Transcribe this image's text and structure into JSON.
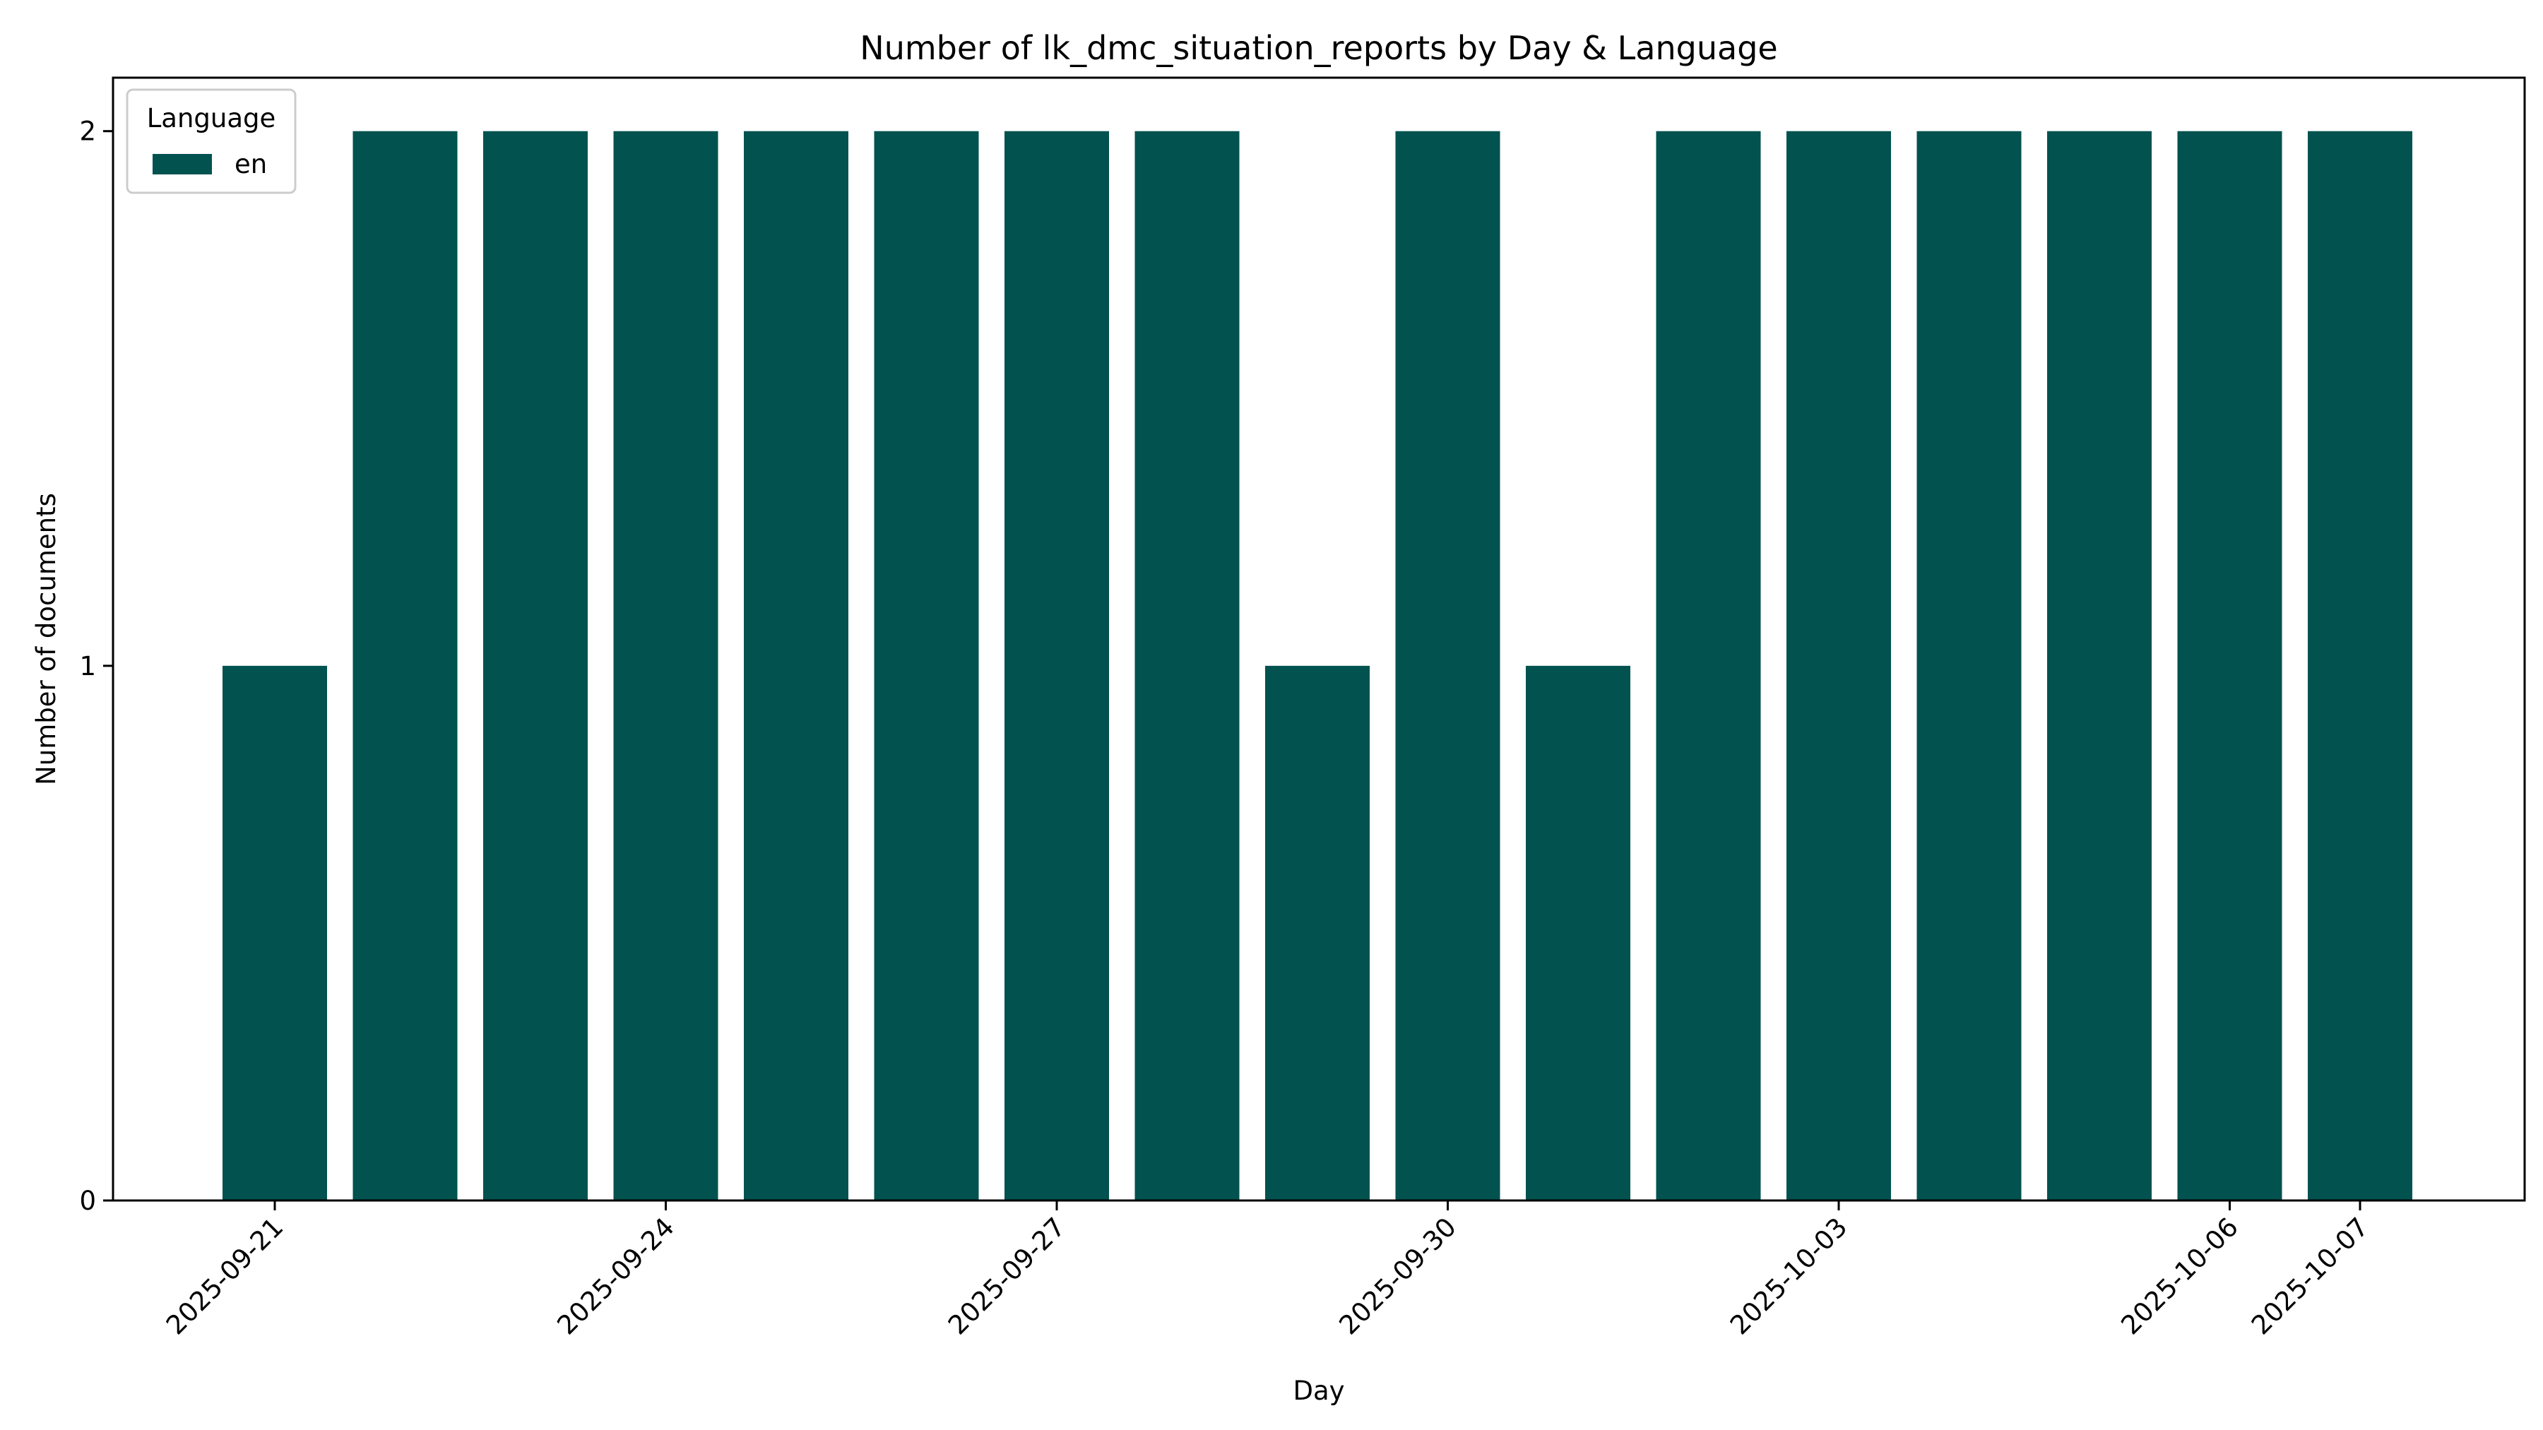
{
  "chart_data": {
    "type": "bar",
    "title": "Number of lk_dmc_situation_reports by Day & Language",
    "xlabel": "Day",
    "ylabel": "Number of documents",
    "categories": [
      "2025-09-21",
      "2025-09-22",
      "2025-09-23",
      "2025-09-24",
      "2025-09-25",
      "2025-09-26",
      "2025-09-27",
      "2025-09-28",
      "2025-09-29",
      "2025-09-30",
      "2025-10-01",
      "2025-10-02",
      "2025-10-03",
      "2025-10-04",
      "2025-10-05",
      "2025-10-06",
      "2025-10-07"
    ],
    "series": [
      {
        "name": "en",
        "color": "#02524f",
        "values": [
          1,
          2,
          2,
          2,
          2,
          2,
          2,
          2,
          1,
          2,
          1,
          2,
          2,
          2,
          2,
          2,
          2
        ]
      }
    ],
    "ylim": [
      0,
      2.1
    ],
    "yticks": [
      "0",
      "1",
      "2"
    ],
    "xtick_labels": [
      "2025-09-21",
      "2025-09-24",
      "2025-09-27",
      "2025-09-30",
      "2025-10-03",
      "2025-10-06",
      "2025-10-07"
    ],
    "legend": {
      "title": "Language",
      "placement": "top-left"
    },
    "grid": false
  }
}
